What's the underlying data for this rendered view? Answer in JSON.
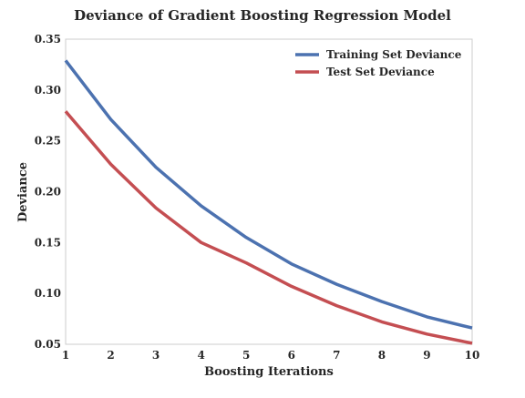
{
  "chart_data": {
    "type": "line",
    "title": "Deviance of Gradient Boosting Regression Model",
    "xlabel": "Boosting Iterations",
    "ylabel": "Deviance",
    "x": [
      1,
      2,
      3,
      4,
      5,
      6,
      7,
      8,
      9,
      10
    ],
    "xlim": [
      1,
      10
    ],
    "ylim": [
      0.05,
      0.35
    ],
    "xticks": [
      "1",
      "2",
      "3",
      "4",
      "5",
      "6",
      "7",
      "8",
      "9",
      "10"
    ],
    "yticks": [
      "0.05",
      "0.10",
      "0.15",
      "0.20",
      "0.25",
      "0.30",
      "0.35"
    ],
    "grid": false,
    "legend_position": "top-right",
    "series": [
      {
        "name": "Training Set Deviance",
        "color": "#4c72b0",
        "values": [
          0.329,
          0.271,
          0.224,
          0.186,
          0.155,
          0.129,
          0.109,
          0.092,
          0.077,
          0.066
        ]
      },
      {
        "name": "Test Set Deviance",
        "color": "#c44e52",
        "values": [
          0.279,
          0.227,
          0.184,
          0.15,
          0.13,
          0.107,
          0.088,
          0.072,
          0.06,
          0.051
        ]
      }
    ]
  }
}
